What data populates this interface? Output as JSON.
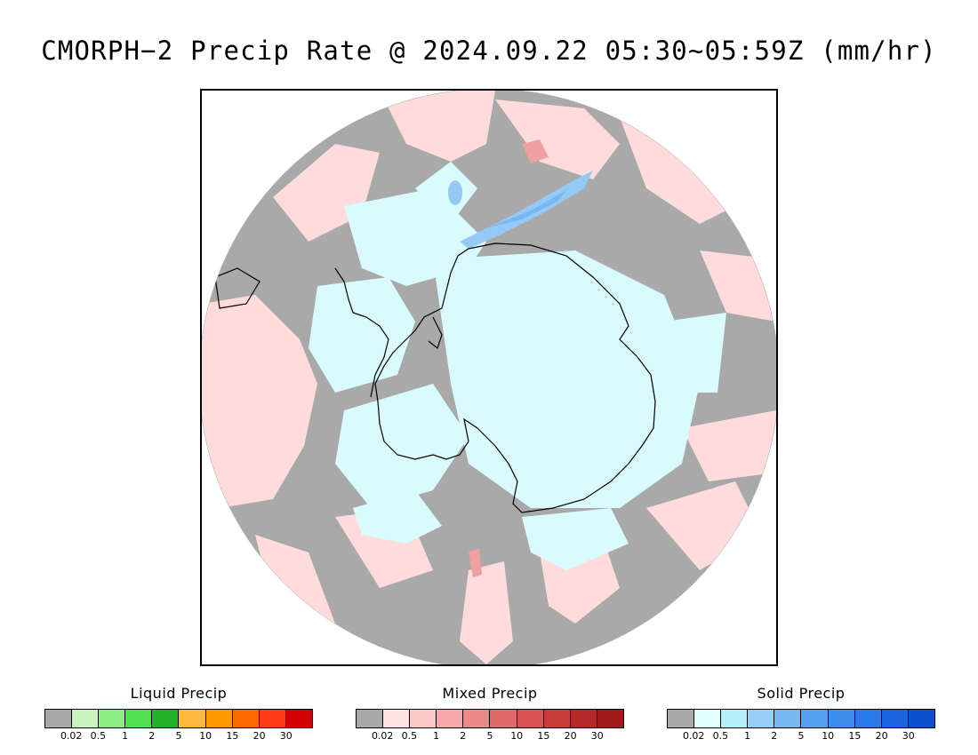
{
  "title": "CMORPH−2 Precip Rate @ 2024.09.22 05:30~05:59Z (mm/hr)",
  "map": {
    "projection": "south-polar-stereographic",
    "colors": {
      "no_precip": "#a9a9a9",
      "ocean_mixed": "#ffdcdc",
      "solid_light": "#d9fbfd",
      "solid_mid": "#96caf6",
      "solid_heavy": "#3c8cec",
      "mixed_mid": "#f0a0a0",
      "coastline": "#000000",
      "frame": "#000000"
    }
  },
  "legends": [
    {
      "title": "Liquid Precip",
      "colors": [
        "#a9a9a9",
        "#c8f5c0",
        "#8eee86",
        "#50e050",
        "#20b02a",
        "#ffb93c",
        "#ff9a00",
        "#ff6a00",
        "#ff3c14",
        "#d20000"
      ],
      "ticks": [
        "0.02",
        "0.5",
        "1",
        "2",
        "5",
        "10",
        "15",
        "20",
        "30"
      ]
    },
    {
      "title": "Mixed Precip",
      "colors": [
        "#a9a9a9",
        "#ffe2e2",
        "#ffc8c8",
        "#f4a8a8",
        "#ec8a8a",
        "#e06a6a",
        "#d85454",
        "#c83c3c",
        "#b42828",
        "#a01c1c"
      ],
      "ticks": [
        "0.02",
        "0.5",
        "1",
        "2",
        "5",
        "10",
        "15",
        "20",
        "30"
      ]
    },
    {
      "title": "Solid Precip",
      "colors": [
        "#a9a9a9",
        "#e0ffff",
        "#b4f0fa",
        "#96cff8",
        "#78b6f4",
        "#56a0f0",
        "#3e8cec",
        "#2a7ae8",
        "#1a66e0",
        "#0c52cc"
      ],
      "ticks": [
        "0.02",
        "0.5",
        "1",
        "2",
        "5",
        "10",
        "15",
        "20",
        "30"
      ]
    }
  ]
}
